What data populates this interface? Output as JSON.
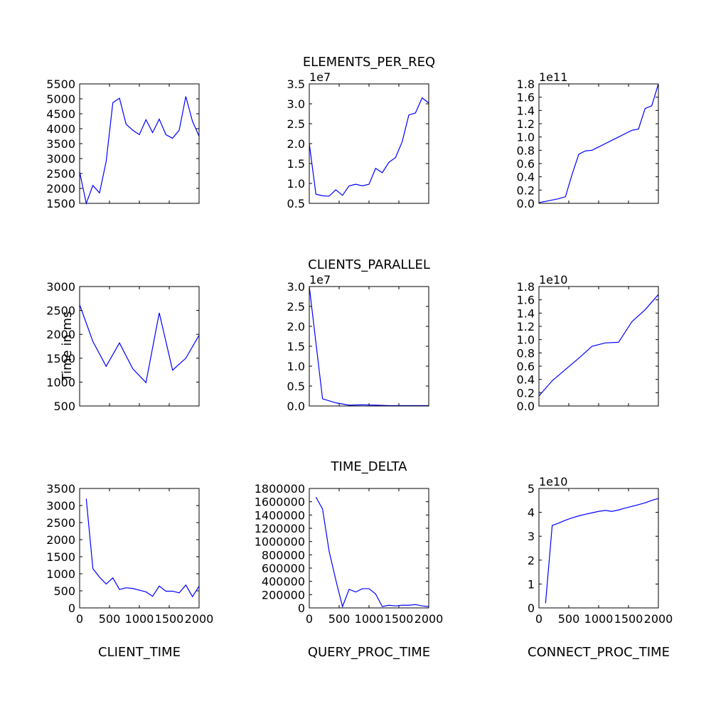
{
  "chart_data": [
    {
      "type": "line",
      "xlim": [
        0,
        2000
      ],
      "xticks": [
        0,
        500,
        1000,
        1500,
        2000
      ],
      "show_xtick_labels": false,
      "ylim": [
        1500,
        5500
      ],
      "yticks": [
        1500,
        2000,
        2500,
        3000,
        3500,
        4000,
        4500,
        5000,
        5500
      ],
      "x": [
        0,
        111,
        222,
        333,
        444,
        556,
        667,
        778,
        889,
        1000,
        1111,
        1222,
        1333,
        1444,
        1556,
        1667,
        1778,
        1889,
        2000
      ],
      "series": [
        {
          "color": "#0000ff",
          "values": [
            2550,
            1500,
            2100,
            1850,
            2900,
            4870,
            5020,
            4150,
            3950,
            3800,
            4300,
            3870,
            4320,
            3800,
            3680,
            3950,
            5080,
            4250,
            3750
          ]
        }
      ]
    },
    {
      "type": "line",
      "title": "ELEMENTS_PER_REQ",
      "offset_text": "1e7",
      "xlim": [
        0,
        2000
      ],
      "xticks": [
        0,
        500,
        1000,
        1500,
        2000
      ],
      "show_xtick_labels": false,
      "ylim": [
        0.5,
        3.5
      ],
      "yticks": [
        0.5,
        {
          "value": 1,
          "label": "1.0"
        },
        1.5,
        {
          "value": 2,
          "label": "2.0"
        },
        2.5,
        {
          "value": 3,
          "label": "3.0"
        },
        3.5
      ],
      "x": [
        0,
        111,
        222,
        333,
        444,
        556,
        667,
        778,
        889,
        1000,
        1111,
        1222,
        1333,
        1444,
        1556,
        1667,
        1778,
        1889,
        2000
      ],
      "series": [
        {
          "color": "#0000ff",
          "values": [
            2.0,
            0.73,
            0.69,
            0.68,
            0.84,
            0.7,
            0.94,
            0.98,
            0.94,
            0.98,
            1.38,
            1.27,
            1.53,
            1.65,
            2.05,
            2.72,
            2.77,
            3.15,
            3.02
          ]
        }
      ]
    },
    {
      "type": "line",
      "offset_text": "1e11",
      "xlim": [
        0,
        2000
      ],
      "xticks": [
        0,
        500,
        1000,
        1500,
        2000
      ],
      "show_xtick_labels": false,
      "ylim": [
        0,
        1.8
      ],
      "yticks": [
        {
          "value": 0,
          "label": "0.0"
        },
        0.2,
        0.4,
        0.6,
        0.8,
        {
          "value": 1,
          "label": "1.0"
        },
        1.2,
        1.4,
        1.6,
        1.8
      ],
      "x": [
        0,
        111,
        222,
        333,
        444,
        556,
        667,
        778,
        889,
        1000,
        1111,
        1222,
        1333,
        1444,
        1556,
        1667,
        1778,
        1889,
        2000
      ],
      "series": [
        {
          "color": "#0000ff",
          "values": [
            0.01,
            0.03,
            0.05,
            0.07,
            0.1,
            0.44,
            0.74,
            0.79,
            0.8,
            0.85,
            0.9,
            0.95,
            1.0,
            1.05,
            1.1,
            1.12,
            1.43,
            1.47,
            1.8
          ]
        }
      ]
    },
    {
      "type": "line",
      "ylabel": "Time in ms",
      "xlim": [
        0,
        2000
      ],
      "xticks": [
        0,
        500,
        1000,
        1500,
        2000
      ],
      "show_xtick_labels": false,
      "ylim": [
        500,
        3000
      ],
      "yticks": [
        500,
        1000,
        1500,
        2000,
        2500,
        3000
      ],
      "x": [
        0,
        222,
        444,
        667,
        889,
        1111,
        1333,
        1556,
        1778,
        2000
      ],
      "series": [
        {
          "color": "#0000ff",
          "values": [
            2620,
            1850,
            1330,
            1820,
            1280,
            990,
            2450,
            1250,
            1500,
            1980
          ]
        }
      ]
    },
    {
      "type": "line",
      "title": "CLIENTS_PARALLEL",
      "offset_text": "1e7",
      "xlim": [
        0,
        2000
      ],
      "xticks": [
        0,
        500,
        1000,
        1500,
        2000
      ],
      "show_xtick_labels": false,
      "ylim": [
        0,
        3.0
      ],
      "yticks": [
        {
          "value": 0,
          "label": "0.0"
        },
        0.5,
        {
          "value": 1,
          "label": "1.0"
        },
        1.5,
        {
          "value": 2,
          "label": "2.0"
        },
        2.5,
        {
          "value": 3,
          "label": "3.0"
        }
      ],
      "x": [
        0,
        222,
        444,
        667,
        889,
        1111,
        1333,
        1556,
        1778,
        2000
      ],
      "series": [
        {
          "color": "#0000ff",
          "values": [
            3.0,
            0.18,
            0.08,
            0.02,
            0.03,
            0.02,
            0.01,
            0.01,
            0.01,
            0.01
          ]
        }
      ]
    },
    {
      "type": "line",
      "offset_text": "1e10",
      "xlim": [
        0,
        2000
      ],
      "xticks": [
        0,
        500,
        1000,
        1500,
        2000
      ],
      "show_xtick_labels": false,
      "ylim": [
        0,
        1.8
      ],
      "yticks": [
        {
          "value": 0,
          "label": "0.0"
        },
        0.2,
        0.4,
        0.6,
        0.8,
        {
          "value": 1,
          "label": "1.0"
        },
        1.2,
        1.4,
        1.6,
        1.8
      ],
      "x": [
        0,
        222,
        444,
        667,
        889,
        1111,
        1333,
        1556,
        1778,
        2000
      ],
      "series": [
        {
          "color": "#0000ff",
          "values": [
            0.15,
            0.38,
            0.55,
            0.72,
            0.9,
            0.95,
            0.96,
            1.27,
            1.45,
            1.68
          ]
        }
      ]
    },
    {
      "type": "line",
      "xlabel": "CLIENT_TIME",
      "xlim": [
        0,
        2000
      ],
      "xticks": [
        0,
        500,
        1000,
        1500,
        2000
      ],
      "show_xtick_labels": true,
      "ylim": [
        0,
        3500
      ],
      "yticks": [
        0,
        500,
        1000,
        1500,
        2000,
        2500,
        3000,
        3500
      ],
      "x": [
        111,
        222,
        333,
        444,
        556,
        667,
        778,
        889,
        1000,
        1111,
        1222,
        1333,
        1444,
        1556,
        1667,
        1778,
        1889,
        2000
      ],
      "series": [
        {
          "color": "#0000ff",
          "values": [
            3200,
            1150,
            900,
            700,
            880,
            540,
            590,
            570,
            520,
            470,
            340,
            640,
            490,
            490,
            440,
            670,
            330,
            640
          ]
        }
      ]
    },
    {
      "type": "line",
      "title": "TIME_DELTA",
      "xlabel": "QUERY_PROC_TIME",
      "xlim": [
        0,
        2000
      ],
      "xticks": [
        0,
        500,
        1000,
        1500,
        2000
      ],
      "show_xtick_labels": true,
      "ylim": [
        0,
        1800000
      ],
      "yticks": [
        0,
        200000,
        400000,
        600000,
        800000,
        1000000,
        1200000,
        1400000,
        1600000,
        1800000
      ],
      "x": [
        111,
        222,
        333,
        444,
        556,
        667,
        778,
        889,
        1000,
        1111,
        1222,
        1333,
        1444,
        1556,
        1667,
        1778,
        1889,
        2000
      ],
      "series": [
        {
          "color": "#0000ff",
          "values": [
            1670000,
            1490000,
            850000,
            420000,
            20000,
            280000,
            240000,
            290000,
            290000,
            210000,
            20000,
            40000,
            30000,
            40000,
            40000,
            50000,
            30000,
            20000
          ]
        }
      ]
    },
    {
      "type": "line",
      "xlabel": "CONNECT_PROC_TIME",
      "offset_text": "1e10",
      "xlim": [
        0,
        2000
      ],
      "xticks": [
        0,
        500,
        1000,
        1500,
        2000
      ],
      "show_xtick_labels": true,
      "ylim": [
        0,
        5
      ],
      "yticks": [
        0,
        1,
        2,
        3,
        4,
        5
      ],
      "x": [
        111,
        222,
        333,
        444,
        556,
        667,
        778,
        889,
        1000,
        1111,
        1222,
        1333,
        1444,
        1556,
        1667,
        1778,
        1889,
        2000
      ],
      "series": [
        {
          "color": "#0000ff",
          "values": [
            0.2,
            3.45,
            3.55,
            3.67,
            3.77,
            3.85,
            3.92,
            3.98,
            4.04,
            4.08,
            4.04,
            4.1,
            4.18,
            4.25,
            4.32,
            4.4,
            4.5,
            4.58
          ]
        }
      ]
    }
  ]
}
